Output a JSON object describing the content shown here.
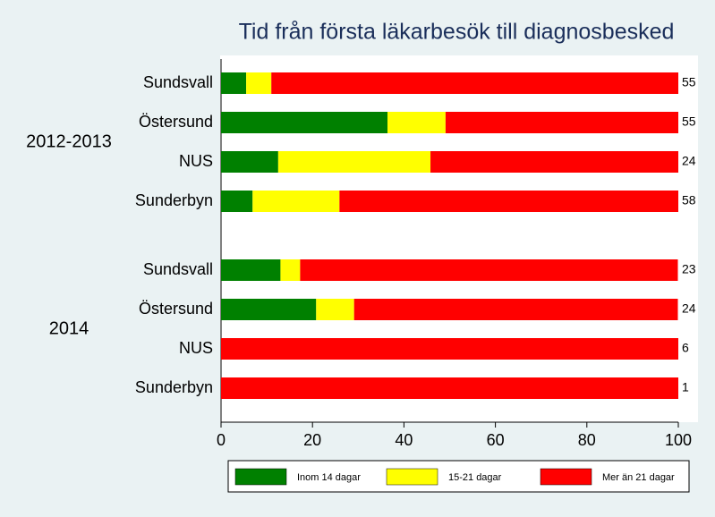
{
  "chart_data": {
    "type": "stacked-bar-horizontal",
    "title": "Tid från första läkarbesök till diagnosbesked",
    "series": [
      {
        "name": "Inom 14 dagar",
        "color": "#008000"
      },
      {
        "name": "15-21 dagar",
        "color": "#ffff00"
      },
      {
        "name": "Mer än 21 dagar",
        "color": "#ff0000"
      }
    ],
    "groups": [
      {
        "label": "2012-2013",
        "categories": [
          "Sundsvall",
          "Östersund",
          "NUS",
          "Sunderbyn"
        ],
        "n": [
          55,
          55,
          24,
          58
        ],
        "values": [
          [
            5.5,
            5.5,
            89
          ],
          [
            36.4,
            12.7,
            50.9
          ],
          [
            12.5,
            33.3,
            54.2
          ],
          [
            6.9,
            19,
            74.1
          ]
        ]
      },
      {
        "label": "2014",
        "categories": [
          "Sundsvall",
          "Östersund",
          "NUS",
          "Sunderbyn"
        ],
        "n": [
          23,
          24,
          6,
          1
        ],
        "values": [
          [
            13,
            4.3,
            82.6
          ],
          [
            20.8,
            8.3,
            70.8
          ],
          [
            0,
            0,
            100
          ],
          [
            0,
            0,
            100
          ]
        ]
      }
    ],
    "xlim": [
      0,
      100
    ],
    "xticks": [
      0,
      20,
      40,
      60,
      80,
      100
    ]
  }
}
